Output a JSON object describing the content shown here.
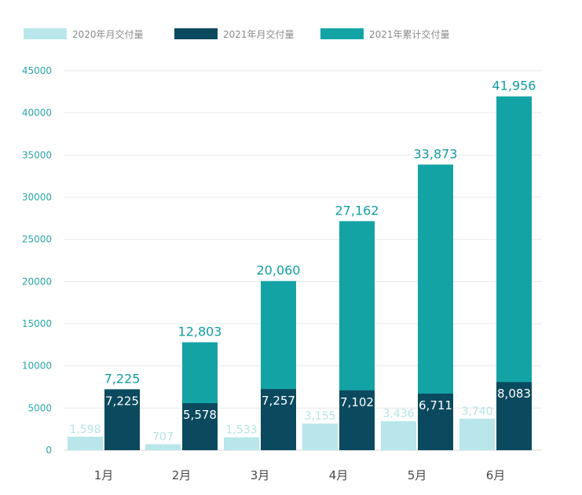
{
  "chart_data": {
    "type": "bar",
    "title": "",
    "xlabel": "",
    "ylabel": "",
    "categories": [
      "1月",
      "2月",
      "3月",
      "4月",
      "5月",
      "6月"
    ],
    "ylim": [
      0,
      45000
    ],
    "yticks": [
      "0",
      "5000",
      "10000",
      "15000",
      "20000",
      "25000",
      "30000",
      "35000",
      "40000",
      "45000"
    ],
    "grid": true,
    "legend_position": "top",
    "series": [
      {
        "name": "2020年月交付量",
        "color": "#b8e6ea",
        "values": [
          1598,
          707,
          1533,
          3155,
          3436,
          3740
        ],
        "labels": [
          "1,598",
          "707",
          "1,533",
          "3,155",
          "3,436",
          "3,740"
        ]
      },
      {
        "name": "2021年月交付量",
        "color": "#0b4a5e",
        "values": [
          7225,
          5578,
          7257,
          7102,
          6711,
          8083
        ],
        "labels": [
          "7,225",
          "5,578",
          "7,257",
          "7,102",
          "6,711",
          "8,083"
        ]
      },
      {
        "name": "2021年累计交付量",
        "color": "#14a3a5",
        "values": [
          7225,
          12803,
          20060,
          27162,
          33873,
          41956
        ],
        "labels": [
          "7,225",
          "12,803",
          "20,060",
          "27,162",
          "33,873",
          "41,956"
        ]
      }
    ]
  }
}
